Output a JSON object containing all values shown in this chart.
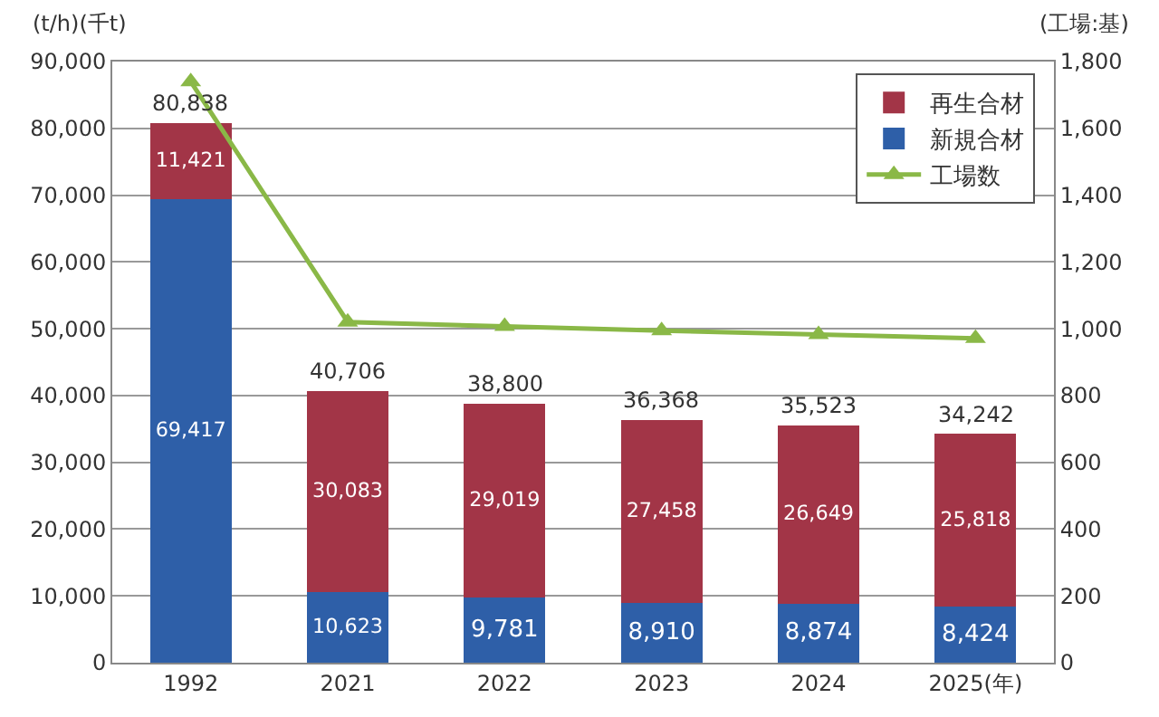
{
  "chart_data": {
    "type": "bar",
    "stacked": true,
    "ylabel": "(t/h)(千t)",
    "y2label": "(工場:基)",
    "categories": [
      "1992",
      "2021",
      "2022",
      "2023",
      "2024",
      "2025(年)"
    ],
    "series": [
      {
        "name": "新規合材",
        "color": "#2e5fa8",
        "values": [
          69417,
          10623,
          9781,
          8910,
          8874,
          8424
        ],
        "value_labels": [
          "69,417",
          "10,623",
          "9,781",
          "8,910",
          "8,874",
          "8,424"
        ]
      },
      {
        "name": "再生合材",
        "color": "#a23547",
        "values": [
          11421,
          30083,
          29019,
          27458,
          26649,
          25818
        ],
        "value_labels": [
          "11,421",
          "30,083",
          "29,019",
          "27,458",
          "26,649",
          "25,818"
        ]
      },
      {
        "name": "工場数",
        "type": "line",
        "axis": "y2",
        "color": "#8ab847",
        "marker": "triangle",
        "values": [
          1740,
          1020,
          1007,
          994,
          983,
          971
        ]
      }
    ],
    "totals": [
      "80,838",
      "40,706",
      "38,800",
      "36,368",
      "35,523",
      "34,242"
    ],
    "ylim": [
      0,
      90000
    ],
    "yticks": [
      {
        "value": 0,
        "label": "0"
      },
      {
        "value": 10000,
        "label": "10,000"
      },
      {
        "value": 20000,
        "label": "20,000"
      },
      {
        "value": 30000,
        "label": "30,000"
      },
      {
        "value": 40000,
        "label": "40,000"
      },
      {
        "value": 50000,
        "label": "50,000"
      },
      {
        "value": 60000,
        "label": "60,000"
      },
      {
        "value": 70000,
        "label": "70,000"
      },
      {
        "value": 80000,
        "label": "80,000"
      },
      {
        "value": 90000,
        "label": "90,000"
      }
    ],
    "y2lim": [
      0,
      1800
    ],
    "y2ticks": [
      {
        "value": 0,
        "label": "0"
      },
      {
        "value": 200,
        "label": "200"
      },
      {
        "value": 400,
        "label": "400"
      },
      {
        "value": 600,
        "label": "600"
      },
      {
        "value": 800,
        "label": "800"
      },
      {
        "value": 1000,
        "label": "1,000"
      },
      {
        "value": 1200,
        "label": "1,200"
      },
      {
        "value": 1400,
        "label": "1,400"
      },
      {
        "value": 1600,
        "label": "1,600"
      },
      {
        "value": 1800,
        "label": "1,800"
      }
    ],
    "grid": "y",
    "legend": "top right"
  }
}
